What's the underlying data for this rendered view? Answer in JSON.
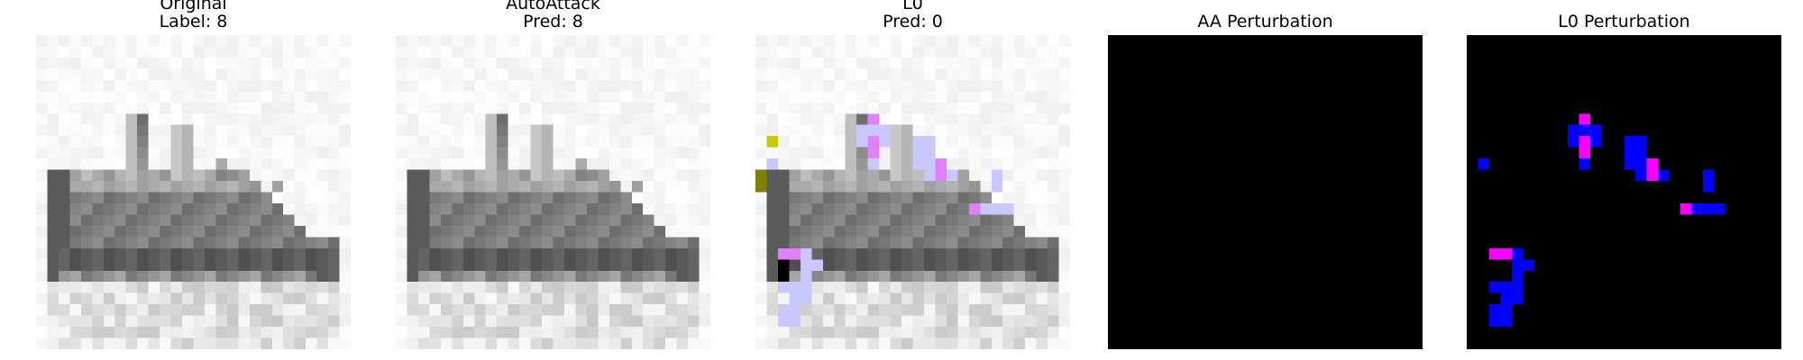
{
  "panels": [
    {
      "line1": "Original",
      "line2": "Label: 8",
      "kind": "original"
    },
    {
      "line1": "AutoAttack",
      "line2": "Pred: 8",
      "kind": "autoattack"
    },
    {
      "line1": "L0",
      "line2": "Pred: 0",
      "kind": "l0"
    },
    {
      "line1": "AA Perturbation",
      "kind": "aa-perturbation"
    },
    {
      "line1": "L0 Perturbation",
      "kind": "l0-perturbation"
    }
  ],
  "colors": {
    "perturbation_background": "#000000",
    "pixel_blue": "#0000ff",
    "pixel_magenta": "#ff00ff",
    "pixel_olive": "#808000",
    "pixel_yellow": "#c8c800",
    "tint_blue": "#c8c8ff",
    "tint_magenta": "#e080ff"
  }
}
